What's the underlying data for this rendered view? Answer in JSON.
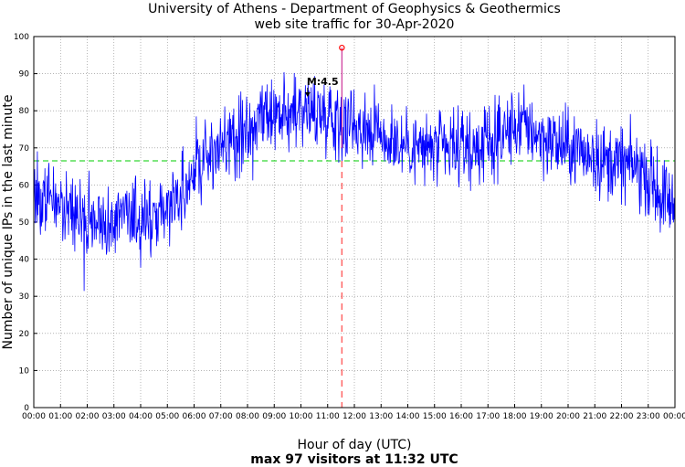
{
  "chart_data": {
    "type": "line",
    "title": "University of Athens - Department of Geophysics & Geothermics",
    "subtitle": "web site traffic for 30-Apr-2020",
    "xlabel": "Hour of day (UTC)",
    "footer": "max 97 visitors at 11:32 UTC",
    "ylabel": "Number of unique IPs in the last minute",
    "xlim": [
      0,
      24
    ],
    "ylim": [
      0,
      100
    ],
    "x_ticks": [
      0,
      1,
      2,
      3,
      4,
      5,
      6,
      7,
      8,
      9,
      10,
      11,
      12,
      13,
      14,
      15,
      16,
      17,
      18,
      19,
      20,
      21,
      22,
      23,
      24
    ],
    "x_tick_labels": [
      "00:00",
      "01:00",
      "02:00",
      "03:00",
      "04:00",
      "05:00",
      "06:00",
      "07:00",
      "08:00",
      "09:00",
      "10:00",
      "11:00",
      "12:00",
      "13:00",
      "14:00",
      "15:00",
      "16:00",
      "17:00",
      "18:00",
      "19:00",
      "20:00",
      "21:00",
      "22:00",
      "23:00",
      "00:00"
    ],
    "y_ticks": [
      0,
      10,
      20,
      30,
      40,
      50,
      60,
      70,
      80,
      90,
      100
    ],
    "y_tick_labels": [
      "0",
      "10",
      "20",
      "30",
      "40",
      "50",
      "60",
      "70",
      "80",
      "90",
      "100"
    ],
    "grid": true,
    "series_color": "#0000ff",
    "mean_line": {
      "y": 66.5,
      "color": "#00cc00"
    },
    "max_marker": {
      "x": 11.533,
      "y": 97,
      "color": "#ff0000"
    },
    "annotation": {
      "label": "M:4.5",
      "x": 10.25,
      "y": 84
    },
    "trend_points": [
      [
        0,
        58
      ],
      [
        0.5,
        57
      ],
      [
        1,
        55
      ],
      [
        1.5,
        52
      ],
      [
        2,
        51
      ],
      [
        2.5,
        50
      ],
      [
        3,
        50
      ],
      [
        3.5,
        50
      ],
      [
        4,
        51
      ],
      [
        4.5,
        52
      ],
      [
        5,
        55
      ],
      [
        5.5,
        58
      ],
      [
        6,
        64
      ],
      [
        6.5,
        68
      ],
      [
        7,
        70
      ],
      [
        7.5,
        72
      ],
      [
        8,
        74
      ],
      [
        8.5,
        76
      ],
      [
        9,
        78
      ],
      [
        9.5,
        79
      ],
      [
        10,
        80
      ],
      [
        10.5,
        80
      ],
      [
        11,
        79
      ],
      [
        11.5,
        78
      ],
      [
        12,
        77
      ],
      [
        12.5,
        76
      ],
      [
        13,
        74
      ],
      [
        13.5,
        72
      ],
      [
        14,
        71
      ],
      [
        14.5,
        70
      ],
      [
        15,
        70
      ],
      [
        15.5,
        69
      ],
      [
        16,
        69
      ],
      [
        16.5,
        70
      ],
      [
        17,
        71
      ],
      [
        17.5,
        73
      ],
      [
        18,
        76
      ],
      [
        18.5,
        76
      ],
      [
        19,
        73
      ],
      [
        19.5,
        71
      ],
      [
        20,
        70
      ],
      [
        20.5,
        69
      ],
      [
        21,
        68
      ],
      [
        21.5,
        66
      ],
      [
        22,
        66
      ],
      [
        22.5,
        65
      ],
      [
        23,
        62
      ],
      [
        23.5,
        57
      ],
      [
        24,
        55
      ]
    ],
    "noise_amplitude": 5
  }
}
